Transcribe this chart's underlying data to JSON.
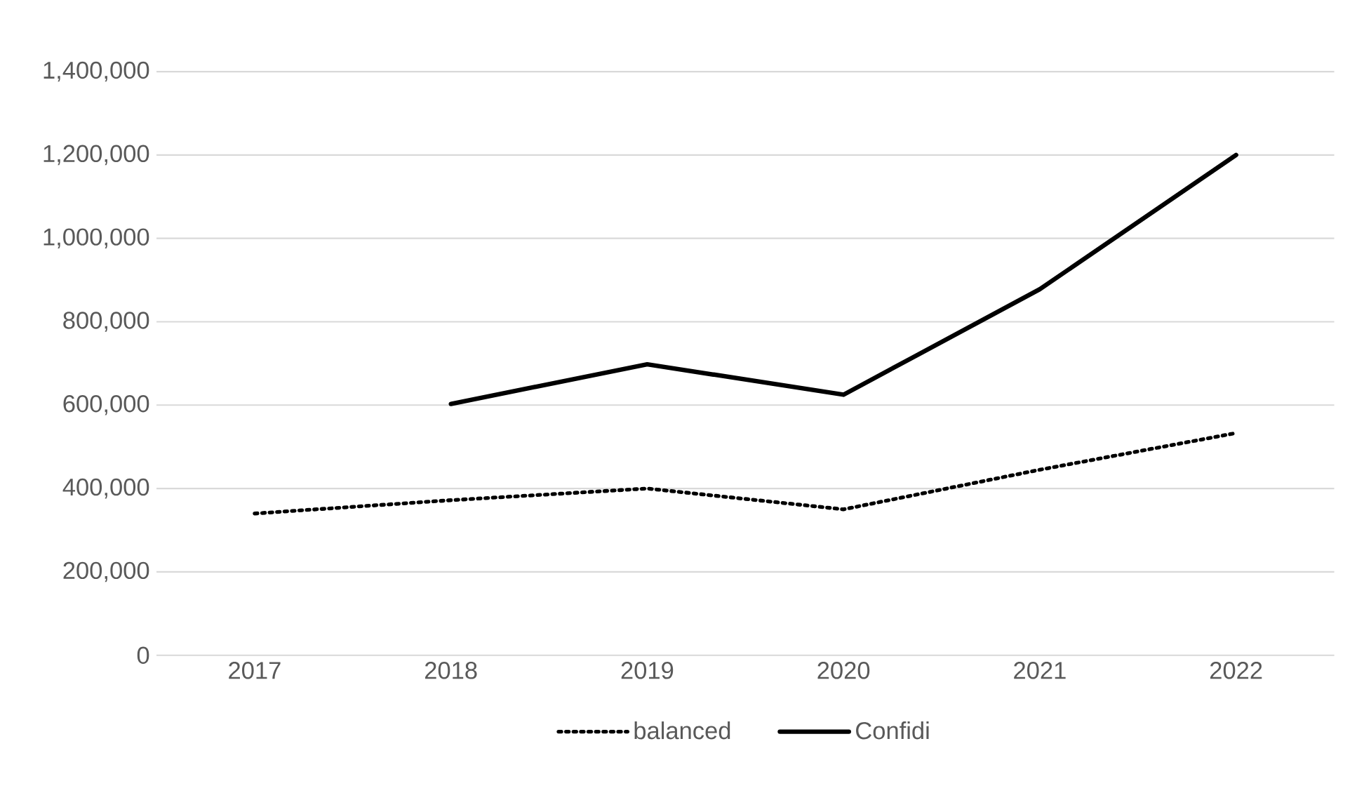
{
  "chart_data": {
    "type": "line",
    "categories": [
      "2017",
      "2018",
      "2019",
      "2020",
      "2021",
      "2022"
    ],
    "series": [
      {
        "name": "balanced",
        "color": "#000000",
        "line_style": "dotted",
        "values": [
          340000,
          372000,
          400000,
          350000,
          445000,
          533000
        ]
      },
      {
        "name": "Confidi",
        "color": "#000000",
        "line_style": "solid",
        "values": [
          null,
          603000,
          698000,
          625000,
          878000,
          1200000
        ]
      }
    ],
    "ylim": [
      0,
      1400000
    ],
    "yticks": [
      {
        "value": 0,
        "label": "0"
      },
      {
        "value": 200000,
        "label": "200,000"
      },
      {
        "value": 400000,
        "label": "400,000"
      },
      {
        "value": 600000,
        "label": "600,000"
      },
      {
        "value": 800000,
        "label": "800,000"
      },
      {
        "value": 1000000,
        "label": "1,000,000"
      },
      {
        "value": 1200000,
        "label": "1,200,000"
      },
      {
        "value": 1400000,
        "label": "1,400,000"
      }
    ],
    "grid": "y",
    "legend": "bottom",
    "marker": "none"
  }
}
